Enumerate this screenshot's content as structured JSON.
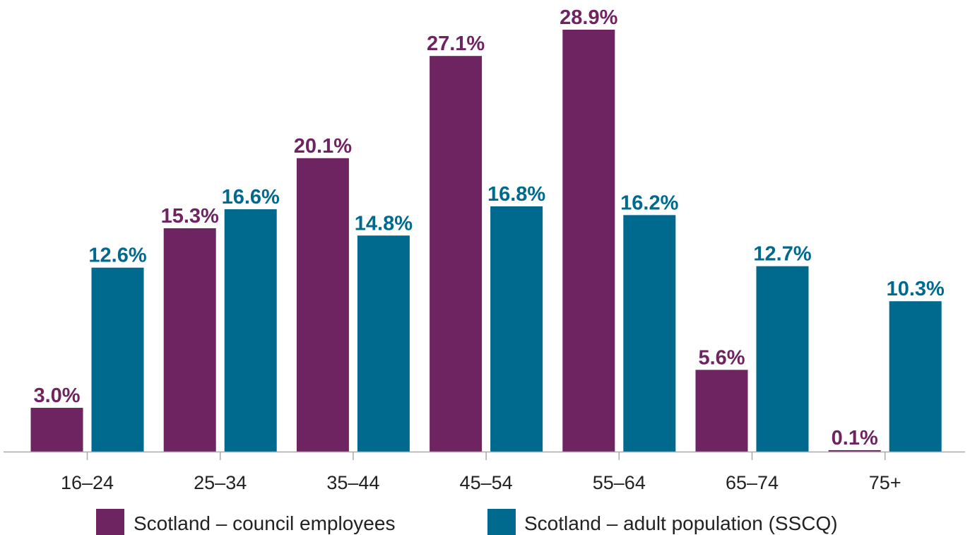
{
  "chart_data": {
    "type": "bar",
    "categories": [
      "16–24",
      "25–34",
      "35–44",
      "45–54",
      "55–64",
      "65–74",
      "75+"
    ],
    "series": [
      {
        "name": "Scotland – council employees",
        "color": "#6d2461",
        "values": [
          3.0,
          15.3,
          20.1,
          27.1,
          28.9,
          5.6,
          0.1
        ],
        "labels": [
          "3.0%",
          "15.3%",
          "20.1%",
          "27.1%",
          "28.9%",
          "5.6%",
          "0.1%"
        ]
      },
      {
        "name": "Scotland – adult population (SSCQ)",
        "color": "#006a8e",
        "values": [
          12.6,
          16.6,
          14.8,
          16.8,
          16.2,
          12.7,
          10.3
        ],
        "labels": [
          "12.6%",
          "16.6%",
          "14.8%",
          "16.8%",
          "16.2%",
          "12.7%",
          "10.3%"
        ]
      }
    ],
    "title": "",
    "xlabel": "",
    "ylabel": "",
    "ylim": [
      0,
      30
    ],
    "grid": false,
    "legend": "bottom-center",
    "axis_color": "#aaaaaa"
  }
}
